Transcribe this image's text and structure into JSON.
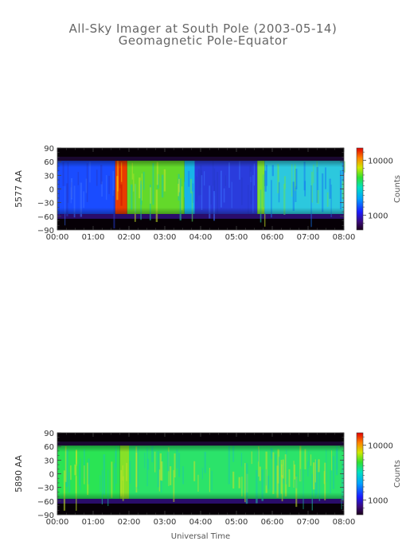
{
  "title_line1": "All-Sky Imager at South Pole (2003-05-14)",
  "title_line2": "Geomagnetic Pole-Equator",
  "xlabel": "Universal Time",
  "colorbar_label": "Counts",
  "chart_data": [
    {
      "type": "heatmap",
      "ylabel": "5577 AA",
      "x_range": [
        "00:00",
        "08:00"
      ],
      "x_ticks": [
        "00:00",
        "01:00",
        "02:00",
        "03:00",
        "04:00",
        "05:00",
        "06:00",
        "07:00",
        "08:00"
      ],
      "y_range": [
        -90,
        90
      ],
      "y_ticks": [
        "90",
        "60",
        "30",
        "0",
        "−30",
        "−60",
        "−90"
      ],
      "colorbar": {
        "scale": "log",
        "ticks": [
          "10000",
          "1000"
        ],
        "label": "Counts"
      },
      "valid_y_range": [
        -55,
        62
      ],
      "segments": [
        {
          "start": "00:00",
          "end": "01:37",
          "level": "low",
          "color": "#1a4cff"
        },
        {
          "start": "01:37",
          "end": "01:57",
          "level": "very high",
          "color": "#e83c00"
        },
        {
          "start": "01:57",
          "end": "03:33",
          "level": "high",
          "color": "#63d92a"
        },
        {
          "start": "03:33",
          "end": "03:50",
          "level": "medium",
          "color": "#18b4e8"
        },
        {
          "start": "03:50",
          "end": "05:35",
          "level": "low",
          "color": "#2a3cdc"
        },
        {
          "start": "05:35",
          "end": "05:47",
          "level": "high",
          "color": "#7fe030"
        },
        {
          "start": "05:47",
          "end": "08:00",
          "level": "medium",
          "color": "#2cc8de"
        }
      ]
    },
    {
      "type": "heatmap",
      "ylabel": "5890 AA",
      "x_range": [
        "00:00",
        "08:00"
      ],
      "x_ticks": [
        "00:00",
        "01:00",
        "02:00",
        "03:00",
        "04:00",
        "05:00",
        "06:00",
        "07:00",
        "08:00"
      ],
      "y_range": [
        -90,
        90
      ],
      "y_ticks": [
        "90",
        "60",
        "30",
        "0",
        "−30",
        "−60",
        "−90"
      ],
      "colorbar": {
        "scale": "log",
        "ticks": [
          "10000",
          "1000"
        ],
        "label": "Counts"
      },
      "valid_y_range": [
        -55,
        62
      ],
      "segments": [
        {
          "start": "00:00",
          "end": "01:45",
          "level": "high",
          "color": "#2ae454"
        },
        {
          "start": "01:45",
          "end": "02:00",
          "level": "high",
          "color": "#86e028"
        },
        {
          "start": "02:00",
          "end": "08:00",
          "level": "high",
          "color": "#2be36a"
        }
      ]
    }
  ]
}
